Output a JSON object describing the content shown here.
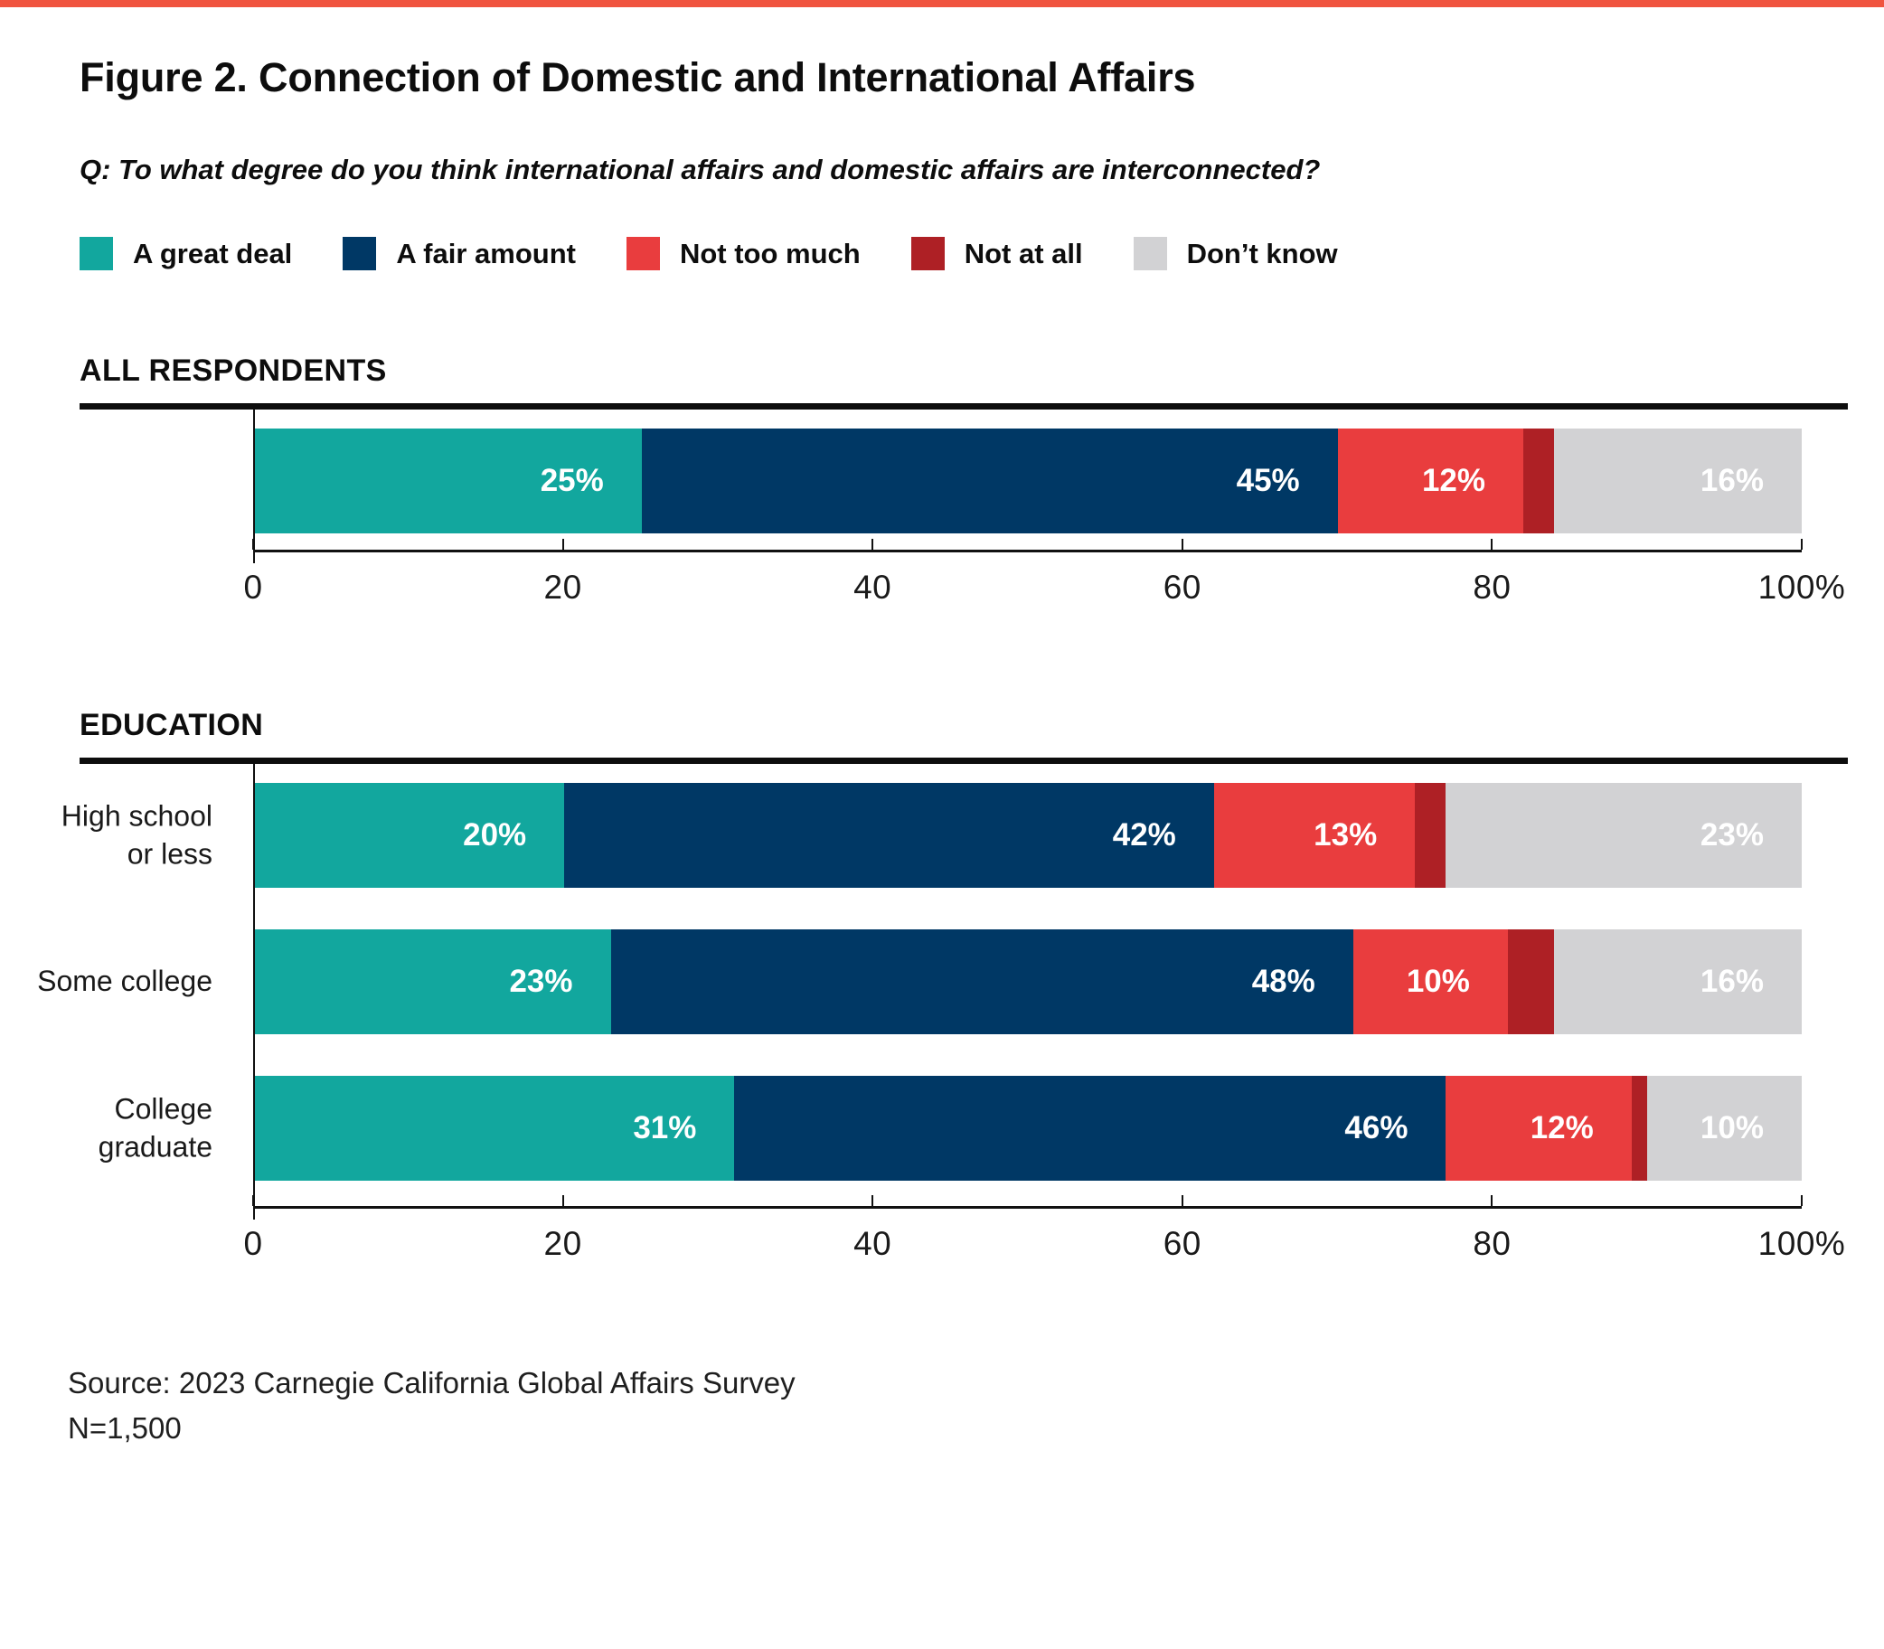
{
  "page": {
    "title": "Figure 2. Connection of Domestic and International Affairs",
    "question": "Q: To what degree do you think international affairs and domestic affairs are interconnected?",
    "source_line1": "Source: 2023 Carnegie California Global Affairs Survey",
    "source_line2": "N=1,500",
    "accent_bar_color": "#F0543F"
  },
  "colors": {
    "a_great_deal": "#12A79E",
    "a_fair_amount": "#003865",
    "not_too_much": "#E93D3E",
    "not_at_all": "#AE2025",
    "dont_know": "#D2D2D4"
  },
  "legend": {
    "items": [
      {
        "label": "A great deal",
        "color": "#12A79E"
      },
      {
        "label": "A fair amount",
        "color": "#003865"
      },
      {
        "label": "Not too much",
        "color": "#E93D3E"
      },
      {
        "label": "Not at all",
        "color": "#AE2025"
      },
      {
        "label": "Don’t know",
        "color": "#D2D2D4"
      }
    ]
  },
  "chart_data": [
    {
      "type": "bar",
      "orientation": "horizontal",
      "stacked": true,
      "section_label": "ALL RESPONDENTS",
      "categories": [
        "All respondents"
      ],
      "show_category_labels": false,
      "series": [
        {
          "name": "A great deal",
          "color": "#12A79E",
          "values": [
            25
          ]
        },
        {
          "name": "A fair amount",
          "color": "#003865",
          "values": [
            45
          ]
        },
        {
          "name": "Not too much",
          "color": "#E93D3E",
          "values": [
            12
          ]
        },
        {
          "name": "Not at all",
          "color": "#AE2025",
          "values": [
            2
          ]
        },
        {
          "name": "Don’t know",
          "color": "#D2D2D4",
          "values": [
            16
          ]
        }
      ],
      "xlim": [
        0,
        100
      ],
      "xticks": [
        0,
        20,
        40,
        60,
        80,
        100
      ],
      "xtick_labels": [
        "0",
        "20",
        "40",
        "60",
        "80",
        "100%"
      ],
      "value_suffix": "%",
      "label_min_value": 5,
      "grid": false,
      "legend_position": "top"
    },
    {
      "type": "bar",
      "orientation": "horizontal",
      "stacked": true,
      "section_label": "EDUCATION",
      "categories": [
        "High school\nor less",
        "Some college",
        "College\ngraduate"
      ],
      "show_category_labels": true,
      "series": [
        {
          "name": "A great deal",
          "color": "#12A79E",
          "values": [
            20,
            23,
            31
          ]
        },
        {
          "name": "A fair amount",
          "color": "#003865",
          "values": [
            42,
            48,
            46
          ]
        },
        {
          "name": "Not too much",
          "color": "#E93D3E",
          "values": [
            13,
            10,
            12
          ]
        },
        {
          "name": "Not at all",
          "color": "#AE2025",
          "values": [
            2,
            3,
            1
          ]
        },
        {
          "name": "Don’t know",
          "color": "#D2D2D4",
          "values": [
            23,
            16,
            10
          ]
        }
      ],
      "xlim": [
        0,
        100
      ],
      "xticks": [
        0,
        20,
        40,
        60,
        80,
        100
      ],
      "xtick_labels": [
        "0",
        "20",
        "40",
        "60",
        "80",
        "100%"
      ],
      "value_suffix": "%",
      "label_min_value": 5,
      "grid": false,
      "legend_position": "top"
    }
  ]
}
